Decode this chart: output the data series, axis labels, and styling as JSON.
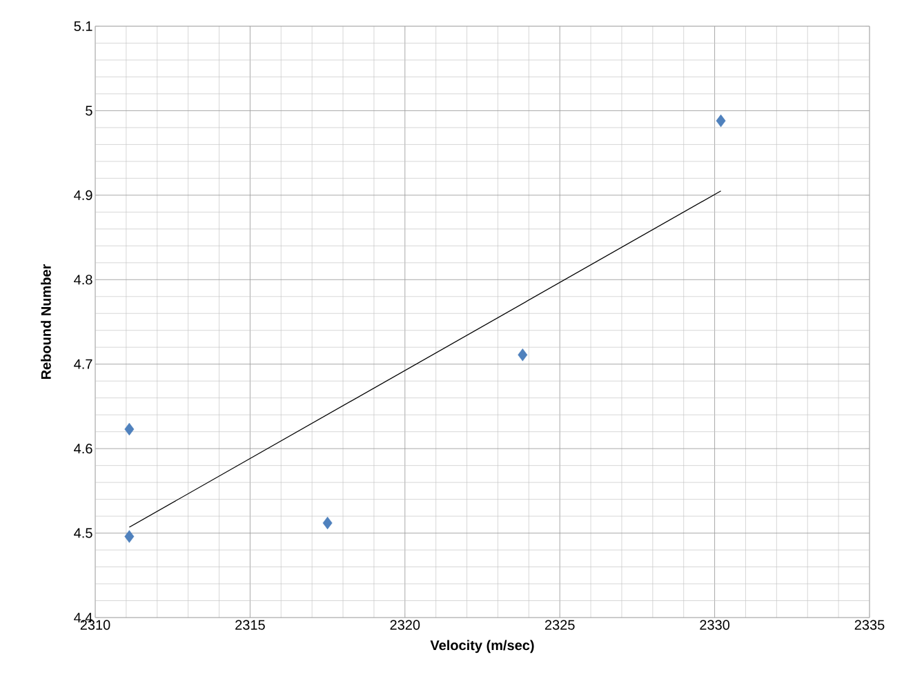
{
  "chart_data": {
    "type": "scatter",
    "xlabel": "Velocity (m/sec)",
    "ylabel": "Rebound Number",
    "xlim": [
      2310,
      2335
    ],
    "xticks": [
      2310,
      2315,
      2320,
      2325,
      2330,
      2335
    ],
    "ylim": [
      4.4,
      5.1
    ],
    "yticks": [
      4.4,
      4.5,
      4.6,
      4.7,
      4.8,
      4.9,
      5,
      5.1
    ],
    "grid": true,
    "series": [
      {
        "color": "#4f81bd",
        "marker": "diamond",
        "x": [
          2311.1,
          2311.1,
          2317.5,
          2323.8,
          2330.2
        ],
        "values": [
          4.623,
          4.496,
          4.512,
          4.711,
          4.988
        ]
      },
      {
        "type": "line",
        "color": "#000000",
        "marker": "none",
        "line_style": "solid",
        "x": [
          2311.1,
          2330.2
        ],
        "values": [
          4.507,
          4.905
        ]
      }
    ]
  }
}
